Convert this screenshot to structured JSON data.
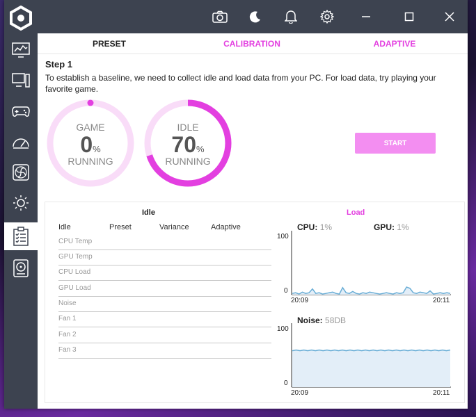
{
  "window": {
    "toolbar_icons": [
      "camera-icon",
      "moon-icon",
      "bell-icon",
      "gear-icon"
    ],
    "controls": [
      "minimize-icon",
      "maximize-icon",
      "close-icon"
    ]
  },
  "sidebar": {
    "items": [
      {
        "icon": "monitor-chart-icon"
      },
      {
        "icon": "desktop-pc-icon"
      },
      {
        "icon": "gamepad-icon"
      },
      {
        "icon": "speedometer-icon"
      },
      {
        "icon": "fan-icon"
      },
      {
        "icon": "sun-icon"
      },
      {
        "icon": "clipboard-checklist-icon",
        "active": true
      },
      {
        "icon": "hard-drive-icon"
      }
    ]
  },
  "tabs": [
    {
      "label": "PRESET",
      "active": true
    },
    {
      "label": "CALIBRATION"
    },
    {
      "label": "ADAPTIVE"
    }
  ],
  "step": {
    "title": "Step 1",
    "description": "To establish a baseline, we need to collect idle and load data from your PC. For load data, try playing your favorite game."
  },
  "rings": {
    "game": {
      "label": "GAME",
      "value": "0",
      "unit": "%",
      "status": "RUNNING",
      "progress": 0
    },
    "idle": {
      "label": "IDLE",
      "value": "70",
      "unit": "%",
      "status": "RUNNING",
      "progress": 0.7
    }
  },
  "start_button": "START",
  "results": {
    "idle_heading": "Idle",
    "load_heading": "Load",
    "columns": [
      "Idle",
      "Preset",
      "Variance",
      "Adaptive"
    ],
    "rows": [
      "CPU Temp",
      "GPU Temp",
      "CPU Load",
      "GPU Load",
      "Noise",
      "Fan 1",
      "Fan 2",
      "Fan 3"
    ]
  },
  "load_chart": {
    "cpu_label": "CPU:",
    "cpu_value": "1%",
    "gpu_label": "GPU:",
    "gpu_value": "1%",
    "y_max": "100",
    "y_min": "0",
    "x_start": "20:09",
    "x_end": "20:11"
  },
  "noise_chart": {
    "label": "Noise:",
    "value": "58DB",
    "y_max": "100",
    "y_min": "0",
    "x_start": "20:09",
    "x_end": "20:11"
  },
  "colors": {
    "accent": "#e33fe0",
    "accent_light": "#f9dcf8",
    "sidebar": "#3d4350",
    "chart_line": "#6aaed6",
    "chart_fill": "#e3eef8"
  },
  "chart_data": [
    {
      "type": "area",
      "x_range": [
        "20:09",
        "20:11"
      ],
      "ylim": [
        0,
        100
      ],
      "series": [
        {
          "values": [
            2,
            3,
            1,
            4,
            2,
            3,
            9,
            2,
            3,
            1,
            2,
            3,
            4,
            2,
            1,
            11,
            3,
            2,
            5,
            2,
            1,
            3,
            2,
            4,
            3,
            2,
            1,
            2,
            3,
            2,
            1,
            3,
            2,
            3,
            12,
            10,
            3,
            2,
            4,
            3,
            2,
            6,
            1,
            2,
            3,
            2,
            3,
            2
          ]
        }
      ]
    },
    {
      "type": "area",
      "x_range": [
        "20:09",
        "20:11"
      ],
      "ylim": [
        0,
        100
      ],
      "series": [
        {
          "values": [
            57,
            58,
            57,
            58,
            57,
            58,
            57,
            58,
            57,
            58,
            57,
            58,
            57,
            58,
            57,
            58,
            57,
            58,
            57,
            58,
            57,
            58,
            57,
            58,
            57,
            58,
            57,
            58,
            57,
            58,
            57,
            58,
            57,
            58,
            57,
            58,
            57,
            58,
            57,
            58,
            57,
            58
          ]
        }
      ]
    }
  ]
}
